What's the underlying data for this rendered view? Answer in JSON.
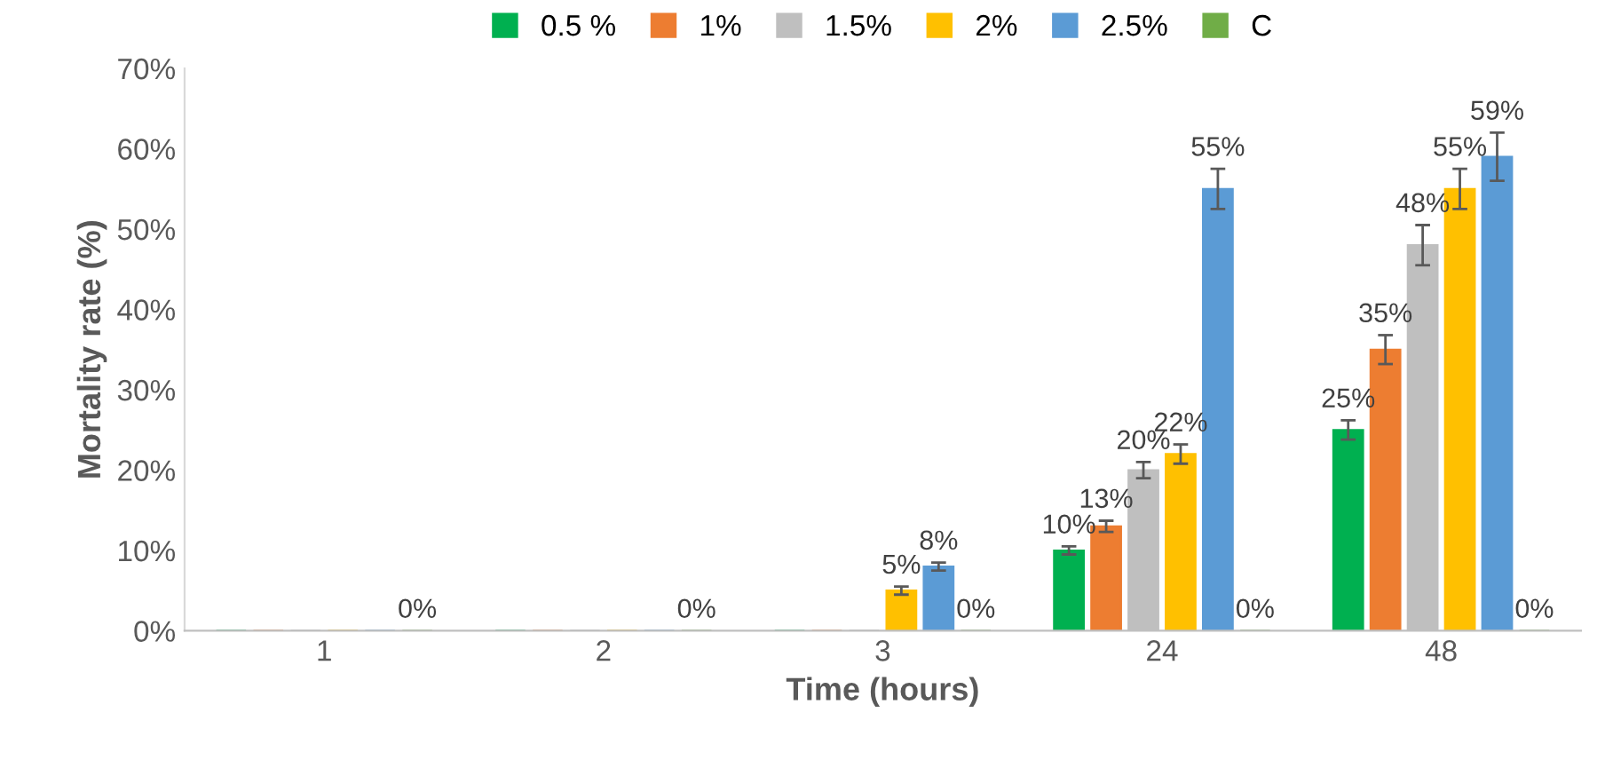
{
  "chart_data": {
    "type": "bar",
    "xlabel": "Time (hours)",
    "ylabel": "Mortality rate (%)",
    "categories": [
      "1",
      "2",
      "3",
      "24",
      "48"
    ],
    "ylim": [
      0,
      70
    ],
    "yticks": [
      {
        "value": 0,
        "label": "0%"
      },
      {
        "value": 10,
        "label": "10%"
      },
      {
        "value": 20,
        "label": "20%"
      },
      {
        "value": 30,
        "label": "30%"
      },
      {
        "value": 40,
        "label": "40%"
      },
      {
        "value": 50,
        "label": "50%"
      },
      {
        "value": 60,
        "label": "60%"
      },
      {
        "value": 70,
        "label": "70%"
      }
    ],
    "grid": false,
    "legend": "top",
    "series": [
      {
        "name": "0.5 %",
        "color": "#00b050",
        "values": [
          0,
          0,
          0,
          10,
          25
        ],
        "errors": [
          null,
          null,
          null,
          0.5,
          1.2
        ],
        "value_labels": [
          null,
          null,
          null,
          "10%",
          "25%"
        ]
      },
      {
        "name": "1%",
        "color": "#ed7d31",
        "values": [
          0,
          0,
          0,
          13,
          35
        ],
        "errors": [
          null,
          null,
          null,
          0.7,
          1.8
        ],
        "value_labels": [
          null,
          null,
          null,
          "13%",
          "35%"
        ]
      },
      {
        "name": "1.5%",
        "color": "#bfbfbf",
        "values": [
          0,
          0,
          0,
          20,
          48
        ],
        "errors": [
          null,
          null,
          null,
          1,
          2.5
        ],
        "value_labels": [
          null,
          null,
          null,
          "20%",
          "48%"
        ]
      },
      {
        "name": "2%",
        "color": "#ffc000",
        "values": [
          0,
          0,
          5,
          22,
          55
        ],
        "errors": [
          null,
          null,
          0.5,
          1.2,
          2.5
        ],
        "value_labels": [
          null,
          null,
          "5%",
          "22%",
          "55%"
        ]
      },
      {
        "name": "2.5%",
        "color": "#5b9bd5",
        "values": [
          0,
          0,
          8,
          55,
          59
        ],
        "errors": [
          null,
          null,
          0.5,
          2.5,
          3
        ],
        "value_labels": [
          null,
          null,
          "8%",
          "55%",
          "59%"
        ]
      },
      {
        "name": "C",
        "color": "#70ad47",
        "values": [
          0,
          0,
          0,
          0,
          0
        ],
        "value_labels": [
          "0%",
          "0%",
          "0%",
          "0%",
          "0%"
        ]
      }
    ]
  }
}
